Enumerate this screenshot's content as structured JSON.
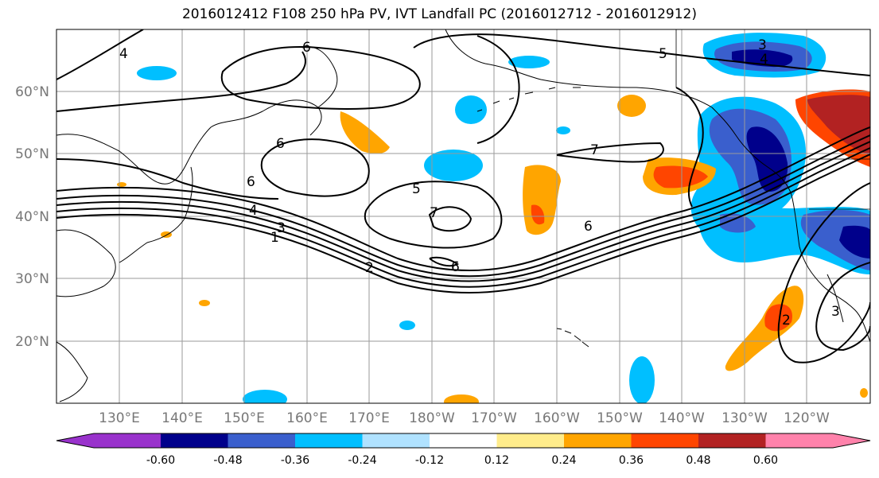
{
  "title": "2016012412 F108 250 hPa PV, IVT Landfall PC (2016012712 - 2016012912)",
  "map": {
    "lat_labels": [
      "60°N",
      "50°N",
      "40°N",
      "30°N",
      "20°N"
    ],
    "lon_labels": [
      "130°E",
      "140°E",
      "150°E",
      "160°E",
      "170°E",
      "180°W",
      "170°W",
      "160°W",
      "150°W",
      "140°W",
      "130°W",
      "120°W"
    ],
    "pv_contour_labels": [
      "4",
      "6",
      "5",
      "3",
      "4",
      "6",
      "7",
      "6",
      "5",
      "4",
      "3",
      "1",
      "2",
      "6",
      "6",
      "7",
      "2",
      "3"
    ]
  },
  "colorbar": {
    "colors": [
      "#9932CC",
      "#00008B",
      "#3A5FCD",
      "#00BFFF",
      "#B0E2FF",
      "#FFFFFF",
      "#FFEC8B",
      "#FFA500",
      "#FF4500",
      "#B22222",
      "#FF82AB"
    ],
    "tick_labels": [
      "-0.60",
      "-0.48",
      "-0.36",
      "-0.24",
      "-0.12",
      "0.12",
      "0.24",
      "0.36",
      "0.48",
      "0.60"
    ]
  }
}
